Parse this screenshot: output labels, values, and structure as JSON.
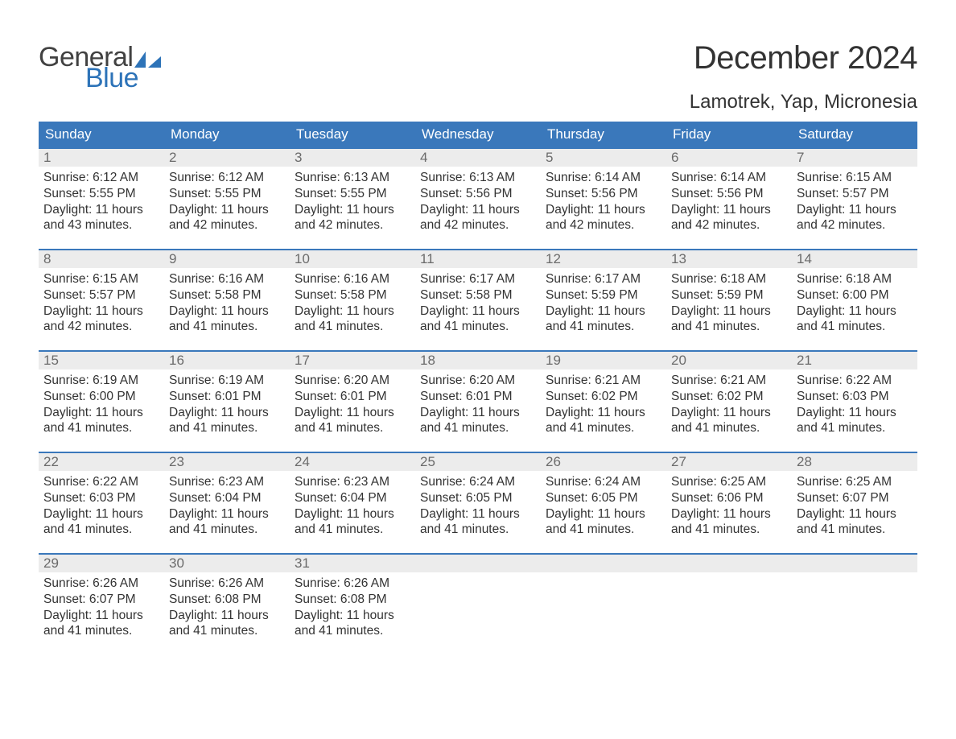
{
  "logo": {
    "line1": "General",
    "line2": "Blue",
    "color_general": "#414141",
    "color_blue": "#2d73b8"
  },
  "title": "December 2024",
  "location": "Lamotrek, Yap, Micronesia",
  "colors": {
    "header_bg": "#3a78bb",
    "header_text": "#ffffff",
    "daynum_bg": "#ececec",
    "daynum_border": "#3a78bb",
    "daynum_text": "#6b6b6b",
    "body_text": "#333333",
    "page_bg": "#ffffff"
  },
  "weekday_headers": [
    "Sunday",
    "Monday",
    "Tuesday",
    "Wednesday",
    "Thursday",
    "Friday",
    "Saturday"
  ],
  "weeks": [
    [
      {
        "day": "1",
        "sunrise": "Sunrise: 6:12 AM",
        "sunset": "Sunset: 5:55 PM",
        "dl1": "Daylight: 11 hours",
        "dl2": "and 43 minutes."
      },
      {
        "day": "2",
        "sunrise": "Sunrise: 6:12 AM",
        "sunset": "Sunset: 5:55 PM",
        "dl1": "Daylight: 11 hours",
        "dl2": "and 42 minutes."
      },
      {
        "day": "3",
        "sunrise": "Sunrise: 6:13 AM",
        "sunset": "Sunset: 5:55 PM",
        "dl1": "Daylight: 11 hours",
        "dl2": "and 42 minutes."
      },
      {
        "day": "4",
        "sunrise": "Sunrise: 6:13 AM",
        "sunset": "Sunset: 5:56 PM",
        "dl1": "Daylight: 11 hours",
        "dl2": "and 42 minutes."
      },
      {
        "day": "5",
        "sunrise": "Sunrise: 6:14 AM",
        "sunset": "Sunset: 5:56 PM",
        "dl1": "Daylight: 11 hours",
        "dl2": "and 42 minutes."
      },
      {
        "day": "6",
        "sunrise": "Sunrise: 6:14 AM",
        "sunset": "Sunset: 5:56 PM",
        "dl1": "Daylight: 11 hours",
        "dl2": "and 42 minutes."
      },
      {
        "day": "7",
        "sunrise": "Sunrise: 6:15 AM",
        "sunset": "Sunset: 5:57 PM",
        "dl1": "Daylight: 11 hours",
        "dl2": "and 42 minutes."
      }
    ],
    [
      {
        "day": "8",
        "sunrise": "Sunrise: 6:15 AM",
        "sunset": "Sunset: 5:57 PM",
        "dl1": "Daylight: 11 hours",
        "dl2": "and 42 minutes."
      },
      {
        "day": "9",
        "sunrise": "Sunrise: 6:16 AM",
        "sunset": "Sunset: 5:58 PM",
        "dl1": "Daylight: 11 hours",
        "dl2": "and 41 minutes."
      },
      {
        "day": "10",
        "sunrise": "Sunrise: 6:16 AM",
        "sunset": "Sunset: 5:58 PM",
        "dl1": "Daylight: 11 hours",
        "dl2": "and 41 minutes."
      },
      {
        "day": "11",
        "sunrise": "Sunrise: 6:17 AM",
        "sunset": "Sunset: 5:58 PM",
        "dl1": "Daylight: 11 hours",
        "dl2": "and 41 minutes."
      },
      {
        "day": "12",
        "sunrise": "Sunrise: 6:17 AM",
        "sunset": "Sunset: 5:59 PM",
        "dl1": "Daylight: 11 hours",
        "dl2": "and 41 minutes."
      },
      {
        "day": "13",
        "sunrise": "Sunrise: 6:18 AM",
        "sunset": "Sunset: 5:59 PM",
        "dl1": "Daylight: 11 hours",
        "dl2": "and 41 minutes."
      },
      {
        "day": "14",
        "sunrise": "Sunrise: 6:18 AM",
        "sunset": "Sunset: 6:00 PM",
        "dl1": "Daylight: 11 hours",
        "dl2": "and 41 minutes."
      }
    ],
    [
      {
        "day": "15",
        "sunrise": "Sunrise: 6:19 AM",
        "sunset": "Sunset: 6:00 PM",
        "dl1": "Daylight: 11 hours",
        "dl2": "and 41 minutes."
      },
      {
        "day": "16",
        "sunrise": "Sunrise: 6:19 AM",
        "sunset": "Sunset: 6:01 PM",
        "dl1": "Daylight: 11 hours",
        "dl2": "and 41 minutes."
      },
      {
        "day": "17",
        "sunrise": "Sunrise: 6:20 AM",
        "sunset": "Sunset: 6:01 PM",
        "dl1": "Daylight: 11 hours",
        "dl2": "and 41 minutes."
      },
      {
        "day": "18",
        "sunrise": "Sunrise: 6:20 AM",
        "sunset": "Sunset: 6:01 PM",
        "dl1": "Daylight: 11 hours",
        "dl2": "and 41 minutes."
      },
      {
        "day": "19",
        "sunrise": "Sunrise: 6:21 AM",
        "sunset": "Sunset: 6:02 PM",
        "dl1": "Daylight: 11 hours",
        "dl2": "and 41 minutes."
      },
      {
        "day": "20",
        "sunrise": "Sunrise: 6:21 AM",
        "sunset": "Sunset: 6:02 PM",
        "dl1": "Daylight: 11 hours",
        "dl2": "and 41 minutes."
      },
      {
        "day": "21",
        "sunrise": "Sunrise: 6:22 AM",
        "sunset": "Sunset: 6:03 PM",
        "dl1": "Daylight: 11 hours",
        "dl2": "and 41 minutes."
      }
    ],
    [
      {
        "day": "22",
        "sunrise": "Sunrise: 6:22 AM",
        "sunset": "Sunset: 6:03 PM",
        "dl1": "Daylight: 11 hours",
        "dl2": "and 41 minutes."
      },
      {
        "day": "23",
        "sunrise": "Sunrise: 6:23 AM",
        "sunset": "Sunset: 6:04 PM",
        "dl1": "Daylight: 11 hours",
        "dl2": "and 41 minutes."
      },
      {
        "day": "24",
        "sunrise": "Sunrise: 6:23 AM",
        "sunset": "Sunset: 6:04 PM",
        "dl1": "Daylight: 11 hours",
        "dl2": "and 41 minutes."
      },
      {
        "day": "25",
        "sunrise": "Sunrise: 6:24 AM",
        "sunset": "Sunset: 6:05 PM",
        "dl1": "Daylight: 11 hours",
        "dl2": "and 41 minutes."
      },
      {
        "day": "26",
        "sunrise": "Sunrise: 6:24 AM",
        "sunset": "Sunset: 6:05 PM",
        "dl1": "Daylight: 11 hours",
        "dl2": "and 41 minutes."
      },
      {
        "day": "27",
        "sunrise": "Sunrise: 6:25 AM",
        "sunset": "Sunset: 6:06 PM",
        "dl1": "Daylight: 11 hours",
        "dl2": "and 41 minutes."
      },
      {
        "day": "28",
        "sunrise": "Sunrise: 6:25 AM",
        "sunset": "Sunset: 6:07 PM",
        "dl1": "Daylight: 11 hours",
        "dl2": "and 41 minutes."
      }
    ],
    [
      {
        "day": "29",
        "sunrise": "Sunrise: 6:26 AM",
        "sunset": "Sunset: 6:07 PM",
        "dl1": "Daylight: 11 hours",
        "dl2": "and 41 minutes."
      },
      {
        "day": "30",
        "sunrise": "Sunrise: 6:26 AM",
        "sunset": "Sunset: 6:08 PM",
        "dl1": "Daylight: 11 hours",
        "dl2": "and 41 minutes."
      },
      {
        "day": "31",
        "sunrise": "Sunrise: 6:26 AM",
        "sunset": "Sunset: 6:08 PM",
        "dl1": "Daylight: 11 hours",
        "dl2": "and 41 minutes."
      },
      {
        "blank": true
      },
      {
        "blank": true
      },
      {
        "blank": true
      },
      {
        "blank": true
      }
    ]
  ]
}
